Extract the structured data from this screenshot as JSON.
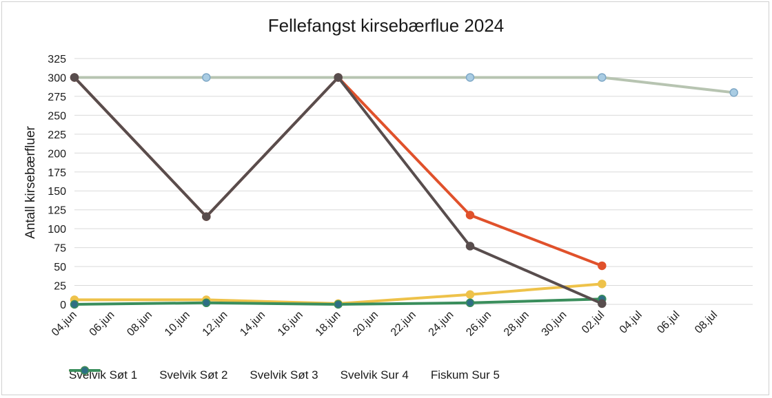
{
  "chart_data": {
    "type": "line",
    "title": "Fellefangst kirsebærflue 2024",
    "xlabel": "",
    "ylabel": "Antall kirsebærfluer",
    "x_tick_labels": [
      "04.jun",
      "06.jun",
      "08.jun",
      "10.jun",
      "12.jun",
      "14.jun",
      "16.jun",
      "18.jun",
      "20.jun",
      "22.jun",
      "24.jun",
      "26.jun",
      "28.jun",
      "30.jun",
      "02.jul",
      "04.jul",
      "06.jul",
      "08.jul"
    ],
    "xlim": [
      "2024-06-04",
      "2024-07-10"
    ],
    "ylim": [
      0,
      325
    ],
    "y_ticks": [
      0,
      25,
      50,
      75,
      100,
      125,
      150,
      175,
      200,
      225,
      250,
      275,
      300,
      325
    ],
    "grid": "horizontal",
    "legend_position": "bottom",
    "series": [
      {
        "name": "Svelvik Søt 1",
        "color": "#E0512B",
        "x": [
          "2024-06-04",
          "2024-06-11",
          "2024-06-18",
          "2024-06-25",
          "2024-07-02"
        ],
        "values": [
          300,
          116,
          300,
          118,
          51
        ]
      },
      {
        "name": "Svelvik Søt 2",
        "color": "#B7C4B1",
        "x": [
          "2024-06-04",
          "2024-06-11",
          "2024-06-18",
          "2024-06-25",
          "2024-07-02",
          "2024-07-09"
        ],
        "values": [
          300,
          300,
          300,
          300,
          300,
          280
        ],
        "marker_color": "#A9CCE3",
        "marker_edge": "#7FA8C6"
      },
      {
        "name": "Svelvik Søt 3",
        "color": "#584D4D",
        "x": [
          "2024-06-04",
          "2024-06-11",
          "2024-06-18",
          "2024-06-25",
          "2024-07-02"
        ],
        "values": [
          300,
          116,
          300,
          77,
          1
        ]
      },
      {
        "name": "Svelvik Sur 4",
        "color": "#EEC24A",
        "x": [
          "2024-06-04",
          "2024-06-11",
          "2024-06-18",
          "2024-06-25",
          "2024-07-02"
        ],
        "values": [
          6,
          6,
          1,
          13,
          27
        ]
      },
      {
        "name": "Fiskum Sur 5",
        "color": "#3A8E5C",
        "x": [
          "2024-06-04",
          "2024-06-11",
          "2024-06-18",
          "2024-06-25",
          "2024-07-02"
        ],
        "values": [
          0,
          2,
          0,
          2,
          7
        ],
        "marker_color": "#2E6E84"
      }
    ]
  }
}
